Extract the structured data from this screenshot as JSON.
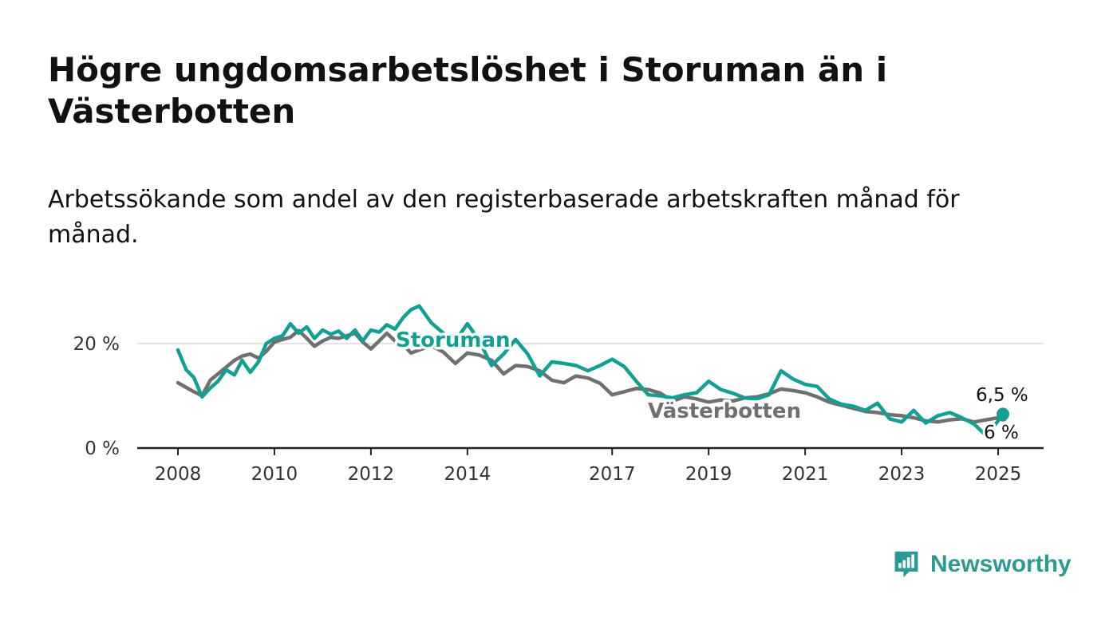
{
  "title": "Högre ungdomsarbetslöshet i Storuman än i Västerbotten",
  "subtitle": "Arbetssökande som andel av den registerbaserade arbetskraften månad för månad.",
  "brand": {
    "name": "Newsworthy",
    "color": "#2a9a93",
    "icon": "bar-chart-logo-icon"
  },
  "chart_data": {
    "type": "line",
    "x_ticks": [
      "2008",
      "2010",
      "2012",
      "2014",
      "2017",
      "2019",
      "2021",
      "2023",
      "2025"
    ],
    "y_ticks": [
      {
        "value": 0,
        "label": "0 %"
      },
      {
        "value": 20,
        "label": "20 %"
      }
    ],
    "ylim": [
      0,
      30
    ],
    "xlim": [
      2007.2,
      2026.0
    ],
    "grid": "horizontal",
    "series": [
      {
        "name": "Västerbotten",
        "color": "#707070",
        "end_label": "6 %",
        "points": [
          [
            2008.0,
            12.5
          ],
          [
            2008.17,
            11.6
          ],
          [
            2008.33,
            10.8
          ],
          [
            2008.5,
            10.0
          ],
          [
            2008.67,
            13.0
          ],
          [
            2008.83,
            14.2
          ],
          [
            2009.0,
            15.5
          ],
          [
            2009.17,
            16.8
          ],
          [
            2009.33,
            17.6
          ],
          [
            2009.5,
            18.0
          ],
          [
            2009.67,
            17.2
          ],
          [
            2009.83,
            18.5
          ],
          [
            2010.0,
            20.3
          ],
          [
            2010.17,
            20.8
          ],
          [
            2010.33,
            21.2
          ],
          [
            2010.5,
            22.5
          ],
          [
            2010.67,
            21.0
          ],
          [
            2010.83,
            19.5
          ],
          [
            2011.0,
            20.5
          ],
          [
            2011.17,
            21.2
          ],
          [
            2011.33,
            21.0
          ],
          [
            2011.5,
            21.5
          ],
          [
            2011.67,
            22.0
          ],
          [
            2011.83,
            20.3
          ],
          [
            2012.0,
            19.0
          ],
          [
            2012.17,
            20.5
          ],
          [
            2012.33,
            22.0
          ],
          [
            2012.5,
            20.5
          ],
          [
            2012.67,
            19.8
          ],
          [
            2012.83,
            18.2
          ],
          [
            2013.0,
            18.8
          ],
          [
            2013.25,
            19.6
          ],
          [
            2013.5,
            18.4
          ],
          [
            2013.75,
            16.2
          ],
          [
            2014.0,
            18.2
          ],
          [
            2014.25,
            17.8
          ],
          [
            2014.5,
            16.8
          ],
          [
            2014.75,
            14.2
          ],
          [
            2015.0,
            15.8
          ],
          [
            2015.25,
            15.6
          ],
          [
            2015.5,
            14.8
          ],
          [
            2015.75,
            13.0
          ],
          [
            2016.0,
            12.5
          ],
          [
            2016.25,
            13.8
          ],
          [
            2016.5,
            13.4
          ],
          [
            2016.75,
            12.4
          ],
          [
            2017.0,
            10.2
          ],
          [
            2017.25,
            10.8
          ],
          [
            2017.5,
            11.4
          ],
          [
            2017.75,
            11.2
          ],
          [
            2018.0,
            10.5
          ],
          [
            2018.25,
            9.0
          ],
          [
            2018.5,
            9.8
          ],
          [
            2018.75,
            9.4
          ],
          [
            2019.0,
            8.8
          ],
          [
            2019.25,
            9.2
          ],
          [
            2019.5,
            9.0
          ],
          [
            2019.75,
            9.6
          ],
          [
            2020.0,
            9.8
          ],
          [
            2020.25,
            10.4
          ],
          [
            2020.5,
            11.3
          ],
          [
            2020.75,
            11.0
          ],
          [
            2021.0,
            10.6
          ],
          [
            2021.25,
            9.8
          ],
          [
            2021.5,
            8.8
          ],
          [
            2021.75,
            8.2
          ],
          [
            2022.0,
            7.6
          ],
          [
            2022.25,
            7.0
          ],
          [
            2022.5,
            6.8
          ],
          [
            2022.75,
            6.4
          ],
          [
            2023.0,
            6.2
          ],
          [
            2023.25,
            5.8
          ],
          [
            2023.5,
            5.2
          ],
          [
            2023.75,
            5.0
          ],
          [
            2024.0,
            5.4
          ],
          [
            2024.25,
            5.6
          ],
          [
            2024.5,
            5.0
          ],
          [
            2024.75,
            5.4
          ],
          [
            2025.0,
            5.8
          ],
          [
            2025.1,
            6.0
          ]
        ]
      },
      {
        "name": "Storuman",
        "color": "#12a095",
        "end_label": "6,5 %",
        "points": [
          [
            2008.0,
            18.8
          ],
          [
            2008.17,
            15.0
          ],
          [
            2008.33,
            13.5
          ],
          [
            2008.5,
            9.8
          ],
          [
            2008.67,
            11.5
          ],
          [
            2008.83,
            12.8
          ],
          [
            2009.0,
            15.0
          ],
          [
            2009.17,
            14.0
          ],
          [
            2009.33,
            16.8
          ],
          [
            2009.5,
            14.5
          ],
          [
            2009.67,
            16.5
          ],
          [
            2009.83,
            20.0
          ],
          [
            2010.0,
            21.0
          ],
          [
            2010.17,
            21.5
          ],
          [
            2010.33,
            23.8
          ],
          [
            2010.5,
            22.0
          ],
          [
            2010.67,
            23.2
          ],
          [
            2010.83,
            21.0
          ],
          [
            2011.0,
            22.6
          ],
          [
            2011.17,
            21.8
          ],
          [
            2011.33,
            22.4
          ],
          [
            2011.5,
            21.0
          ],
          [
            2011.67,
            22.6
          ],
          [
            2011.83,
            20.5
          ],
          [
            2012.0,
            22.6
          ],
          [
            2012.17,
            22.2
          ],
          [
            2012.33,
            23.6
          ],
          [
            2012.5,
            22.8
          ],
          [
            2012.67,
            25.0
          ],
          [
            2012.83,
            26.5
          ],
          [
            2013.0,
            27.2
          ],
          [
            2013.25,
            24.0
          ],
          [
            2013.5,
            22.0
          ],
          [
            2013.75,
            20.5
          ],
          [
            2014.0,
            23.8
          ],
          [
            2014.25,
            20.5
          ],
          [
            2014.5,
            15.8
          ],
          [
            2014.75,
            18.0
          ],
          [
            2015.0,
            20.8
          ],
          [
            2015.25,
            18.0
          ],
          [
            2015.5,
            13.8
          ],
          [
            2015.75,
            16.5
          ],
          [
            2016.0,
            16.2
          ],
          [
            2016.25,
            15.8
          ],
          [
            2016.5,
            14.8
          ],
          [
            2016.75,
            15.8
          ],
          [
            2017.0,
            17.0
          ],
          [
            2017.25,
            15.6
          ],
          [
            2017.5,
            12.8
          ],
          [
            2017.75,
            10.2
          ],
          [
            2018.0,
            10.0
          ],
          [
            2018.25,
            9.6
          ],
          [
            2018.5,
            10.2
          ],
          [
            2018.75,
            10.6
          ],
          [
            2019.0,
            12.8
          ],
          [
            2019.25,
            11.2
          ],
          [
            2019.5,
            10.5
          ],
          [
            2019.75,
            9.6
          ],
          [
            2020.0,
            9.4
          ],
          [
            2020.25,
            10.2
          ],
          [
            2020.5,
            14.8
          ],
          [
            2020.75,
            13.2
          ],
          [
            2021.0,
            12.2
          ],
          [
            2021.25,
            11.8
          ],
          [
            2021.5,
            9.4
          ],
          [
            2021.75,
            8.4
          ],
          [
            2022.0,
            8.0
          ],
          [
            2022.25,
            7.2
          ],
          [
            2022.5,
            8.6
          ],
          [
            2022.75,
            5.6
          ],
          [
            2023.0,
            5.0
          ],
          [
            2023.25,
            7.2
          ],
          [
            2023.5,
            4.8
          ],
          [
            2023.75,
            6.2
          ],
          [
            2024.0,
            6.8
          ],
          [
            2024.25,
            5.8
          ],
          [
            2024.5,
            4.6
          ],
          [
            2024.75,
            2.4
          ],
          [
            2025.0,
            5.2
          ],
          [
            2025.1,
            6.5
          ]
        ]
      }
    ]
  }
}
